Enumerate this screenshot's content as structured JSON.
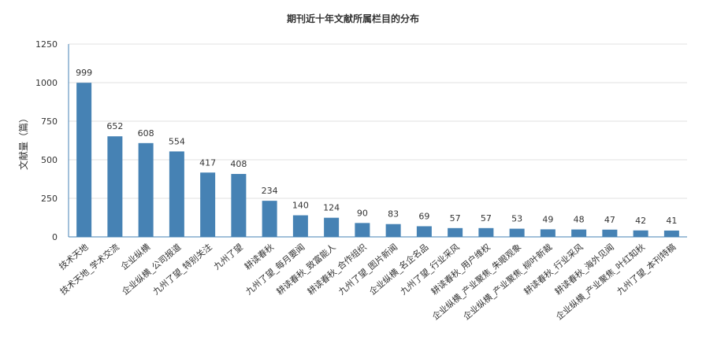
{
  "chart_data": {
    "type": "bar",
    "title": "期刊近十年文献所属栏目的分布",
    "xlabel": "",
    "ylabel": "文献量（篇）",
    "ylim": [
      0,
      1250
    ],
    "yticks": [
      0,
      250,
      500,
      750,
      1000,
      1250
    ],
    "grid": true,
    "legend": "none",
    "bar_color": "#4682b4",
    "categories": [
      "技术天地",
      "技术天地_学术交流",
      "企业纵横",
      "企业纵横_公司报道",
      "九州了望_特别关注",
      "九州了望",
      "耕读春秋",
      "九州了望_每月要闻",
      "耕读春秋_致富能人",
      "耕读春秋_合作组织",
      "九州了望_图片新闻",
      "企业纵横_名企名品",
      "九州了望_行业采风",
      "耕读春秋_用户维权",
      "企业纵横_产业聚焦_朱眼观象",
      "企业纵横_产业聚焦_柳叶新裁",
      "耕读春秋_行业采风",
      "耕读春秋_海外见闻",
      "企业纵横_产业聚焦_叶红知秋",
      "九州了望_本刊特稿"
    ],
    "values": [
      999,
      652,
      608,
      554,
      417,
      408,
      234,
      140,
      124,
      90,
      83,
      69,
      57,
      57,
      53,
      49,
      48,
      47,
      42,
      41
    ]
  }
}
